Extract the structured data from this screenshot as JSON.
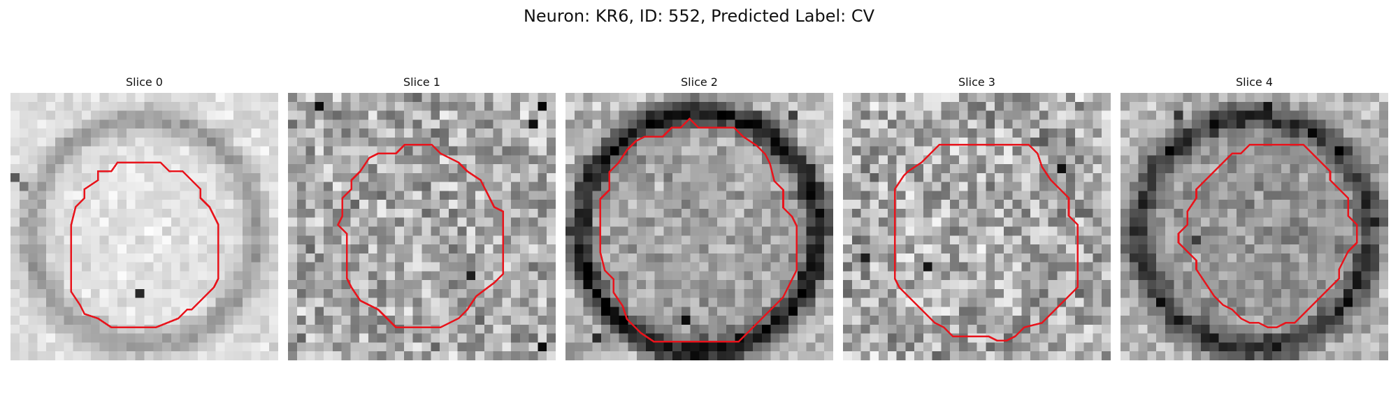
{
  "figure": {
    "title": "Neuron: KR6, ID: 552, Predicted Label: CV",
    "outline_color": "#e8141c",
    "colormap": "grayscale",
    "panels": [
      {
        "title": "Slice 0",
        "mean_gray": 222,
        "contrast": 22,
        "noise": 16,
        "ring_dark": 70,
        "ring_radius": 0.42,
        "center_offset": 5,
        "spots": [
          [
            10,
            1,
            120
          ],
          [
            9,
            0,
            90
          ],
          [
            22,
            14,
            40
          ]
        ]
      },
      {
        "title": "Slice 1",
        "mean_gray": 170,
        "contrast": 30,
        "noise": 60,
        "ring_dark": 0,
        "ring_radius": 0.45,
        "center_offset": 0,
        "spots": [
          [
            1,
            3,
            10
          ],
          [
            1,
            28,
            5
          ],
          [
            3,
            27,
            15
          ],
          [
            28,
            28,
            10
          ],
          [
            20,
            20,
            30
          ]
        ]
      },
      {
        "title": "Slice 2",
        "mean_gray": 185,
        "contrast": 40,
        "noise": 35,
        "ring_dark": 150,
        "ring_radius": 0.45,
        "center_offset": -20,
        "spots": [
          [
            25,
            13,
            10
          ],
          [
            27,
            3,
            40
          ],
          [
            26,
            7,
            30
          ],
          [
            2,
            25,
            60
          ]
        ]
      },
      {
        "title": "Slice 3",
        "mean_gray": 175,
        "contrast": 20,
        "noise": 65,
        "ring_dark": 20,
        "ring_radius": 0.44,
        "center_offset": 0,
        "spots": [
          [
            13,
            17,
            230
          ],
          [
            19,
            9,
            20
          ],
          [
            8,
            24,
            15
          ],
          [
            18,
            2,
            30
          ]
        ]
      },
      {
        "title": "Slice 4",
        "mean_gray": 180,
        "contrast": 30,
        "noise": 35,
        "ring_dark": 110,
        "ring_radius": 0.44,
        "center_offset": -30,
        "spots": [
          [
            1,
            16,
            20
          ],
          [
            3,
            17,
            30
          ],
          [
            2,
            6,
            50
          ],
          [
            4,
            7,
            45
          ],
          [
            16,
            8,
            60
          ]
        ]
      }
    ]
  }
}
